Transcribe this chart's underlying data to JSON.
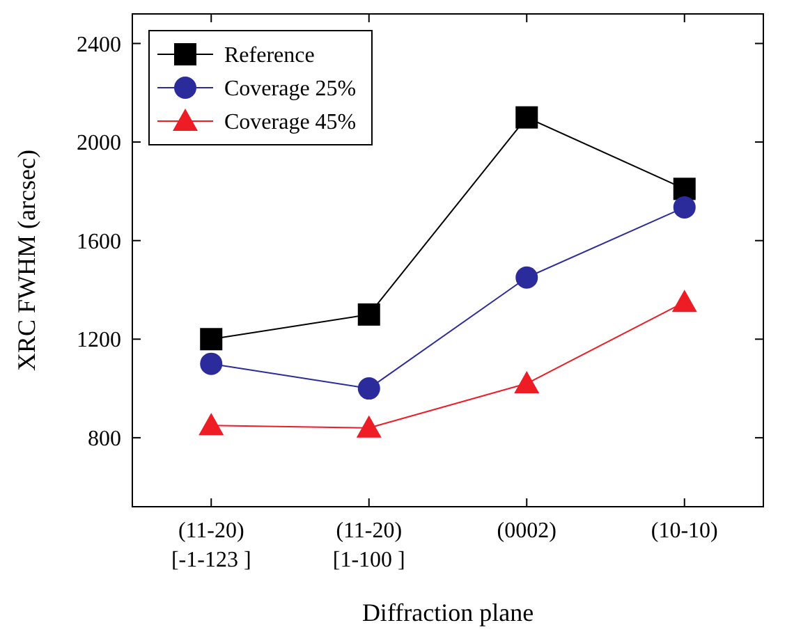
{
  "chart_data": {
    "type": "line",
    "xlabel": "Diffraction plane",
    "ylabel": "XRC FWHM (arcsec)",
    "categories": [
      "(11-20)\n[-1-123 ]",
      "(11-20)\n[1-100 ]",
      "(0002)",
      "(10-10)"
    ],
    "series": [
      {
        "name": "Reference",
        "color": "#000000",
        "marker": "square",
        "values": [
          1200,
          1300,
          2100,
          1810
        ]
      },
      {
        "name": "Coverage 25%",
        "color": "#2b2b9c",
        "marker": "circle",
        "values": [
          1100,
          1000,
          1450,
          1735
        ]
      },
      {
        "name": "Coverage 45%",
        "color": "#ee1c24",
        "marker": "triangle",
        "values": [
          850,
          840,
          1020,
          1350
        ]
      }
    ],
    "ylim": [
      520,
      2520
    ],
    "yticks": [
      800,
      1200,
      1600,
      2000,
      2400
    ],
    "grid": false,
    "legend": "top left",
    "line_style": "solid"
  }
}
